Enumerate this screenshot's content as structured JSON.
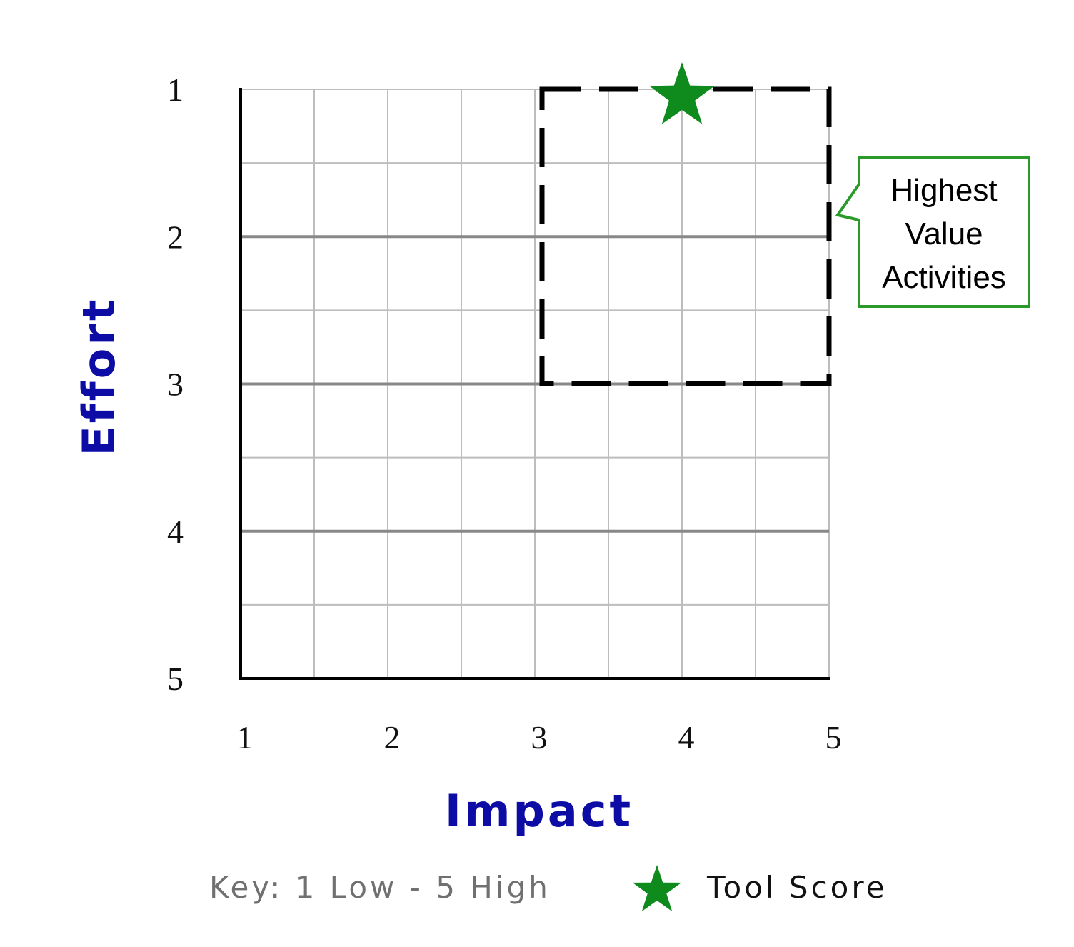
{
  "chart_data": {
    "type": "scatter",
    "xlabel": "Impact",
    "ylabel": "Effort",
    "x_ticks": [
      "1",
      "2",
      "3",
      "4",
      "5"
    ],
    "y_ticks": [
      "1",
      "2",
      "3",
      "4",
      "5"
    ],
    "xlim": [
      1,
      5
    ],
    "ylim": [
      1,
      5
    ],
    "y_inverted": true,
    "grid": true,
    "minor_grid_step": 0.5,
    "highlight_region": {
      "label_lines": [
        "Highest",
        "Value",
        "Activities"
      ],
      "x_range": [
        3,
        5
      ],
      "y_range": [
        1,
        3
      ],
      "border_style": "dashed",
      "callout_color": "#2a9a2a"
    },
    "series": [
      {
        "name": "Tool Score",
        "marker": "star",
        "color": "#0f8a1c",
        "points": [
          {
            "x": 4,
            "y": 1
          }
        ]
      }
    ],
    "key_text": "Key: 1 Low - 5 High",
    "legend_placement": "bottom"
  },
  "colors": {
    "axis_title": "#0d0da6",
    "grid_major": "#888888",
    "grid_minor": "#bdbdbd",
    "star": "#0f8a1c",
    "callout_border": "#2a9a2a"
  }
}
